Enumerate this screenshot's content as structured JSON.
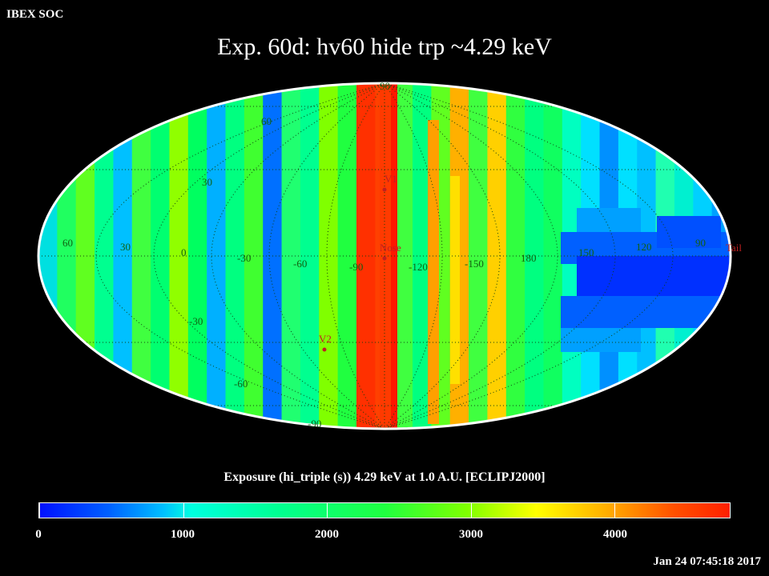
{
  "header": {
    "org": "IBEX SOC",
    "title": "Exp.   60d: hv60 hide trp ~4.29 keV"
  },
  "map": {
    "projection": "aitoff-ellipse",
    "lat_labels": [
      "90",
      "60",
      "30",
      "-30",
      "-60",
      "-90"
    ],
    "lon_labels": [
      "60",
      "30",
      "0",
      "-30",
      "-60",
      "-90",
      "-120",
      "-150",
      "180",
      "150",
      "120",
      "90"
    ],
    "markers": [
      {
        "label": "V1",
        "color": "#c02020"
      },
      {
        "label": "Nose",
        "color": "#c02020"
      },
      {
        "label": "V2",
        "color": "#c02020"
      },
      {
        "label": "Tail",
        "color": "#c02020"
      }
    ]
  },
  "colorbar": {
    "label": "Exposure (hi_triple (s))  4.29 keV at 1.0 A.U. [ECLIPJ2000]",
    "ticks": [
      "0",
      "1000",
      "2000",
      "3000",
      "4000"
    ],
    "range": [
      0,
      4800
    ]
  },
  "footer": {
    "timestamp": "Jan 24 07:45:18 2017"
  }
}
